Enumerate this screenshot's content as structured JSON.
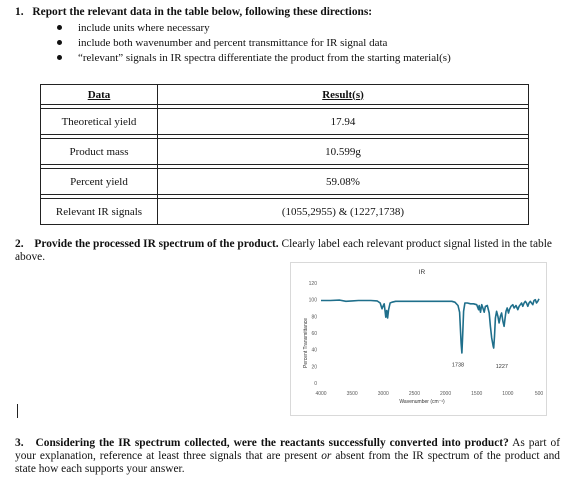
{
  "q1": {
    "number": "1.",
    "heading": "Report the relevant data in the table below, following these directions:",
    "bullets": [
      "include units where necessary",
      "include both wavenumber and percent transmittance for IR signal data",
      "“relevant” signals in IR spectra differentiate the product from the starting material(s)"
    ]
  },
  "table": {
    "headers": [
      "Data",
      "Result(s)"
    ],
    "rows": [
      {
        "label": "Theoretical yield",
        "value": "17.94"
      },
      {
        "label": "Product mass",
        "value": "10.599g"
      },
      {
        "label": "Percent yield",
        "value": "59.08%"
      },
      {
        "label": "Relevant IR signals",
        "value": "(1055,2955) & (1227,1738)"
      }
    ]
  },
  "q2": {
    "number": "2.",
    "bold": "Provide the processed IR spectrum of the product.",
    "rest": " Clearly label each relevant product signal listed in the table above."
  },
  "q3": {
    "number": "3.",
    "bold": "Considering the IR spectrum collected, were the reactants successfully converted into product?",
    "rest_a": " As part of your explanation, reference at least three signals that are present ",
    "or": "or",
    "rest_b": " absent from the IR spectrum of the product and state how each supports your answer."
  },
  "chart_data": {
    "type": "line",
    "title": "IR",
    "xlabel": "Wavenumber (cm⁻¹)",
    "ylabel": "Percent Transmittance",
    "xlim": [
      4000,
      500
    ],
    "ylim": [
      0,
      120
    ],
    "x_ticks": [
      "4000",
      "3500",
      "3000",
      "2500",
      "2000",
      "1500",
      "1000",
      "500"
    ],
    "y_ticks": [
      "0",
      "20",
      "40",
      "60",
      "80",
      "100",
      "120"
    ],
    "annotations": [
      {
        "text": "1738",
        "x": 1738,
        "y": 20
      },
      {
        "text": "1227",
        "x": 1227,
        "y": 18
      }
    ],
    "line_color": "#1f6f8b",
    "series": [
      {
        "points": [
          [
            4000,
            99
          ],
          [
            3850,
            99
          ],
          [
            3700,
            99.5
          ],
          [
            3600,
            98
          ],
          [
            3500,
            98.5
          ],
          [
            3400,
            99
          ],
          [
            3300,
            99
          ],
          [
            3200,
            99
          ],
          [
            3100,
            98.5
          ],
          [
            3050,
            96
          ],
          [
            3020,
            89
          ],
          [
            3000,
            93
          ],
          [
            2985,
            95
          ],
          [
            2960,
            79
          ],
          [
            2945,
            87
          ],
          [
            2930,
            78
          ],
          [
            2915,
            88
          ],
          [
            2890,
            96
          ],
          [
            2860,
            97
          ],
          [
            2800,
            98
          ],
          [
            2600,
            98
          ],
          [
            2400,
            98
          ],
          [
            2200,
            98
          ],
          [
            2000,
            98
          ],
          [
            1900,
            98
          ],
          [
            1850,
            97
          ],
          [
            1800,
            93
          ],
          [
            1775,
            85
          ],
          [
            1750,
            48
          ],
          [
            1738,
            36
          ],
          [
            1725,
            58
          ],
          [
            1710,
            86
          ],
          [
            1690,
            96
          ],
          [
            1650,
            96
          ],
          [
            1600,
            95
          ],
          [
            1550,
            95
          ],
          [
            1500,
            94
          ],
          [
            1470,
            88
          ],
          [
            1460,
            93
          ],
          [
            1440,
            85
          ],
          [
            1420,
            94
          ],
          [
            1400,
            90
          ],
          [
            1380,
            85
          ],
          [
            1360,
            92
          ],
          [
            1330,
            93
          ],
          [
            1300,
            84
          ],
          [
            1280,
            68
          ],
          [
            1260,
            54
          ],
          [
            1245,
            48
          ],
          [
            1235,
            44
          ],
          [
            1227,
            42
          ],
          [
            1215,
            56
          ],
          [
            1200,
            78
          ],
          [
            1180,
            86
          ],
          [
            1160,
            80
          ],
          [
            1140,
            72
          ],
          [
            1120,
            80
          ],
          [
            1100,
            84
          ],
          [
            1080,
            74
          ],
          [
            1060,
            68
          ],
          [
            1045,
            78
          ],
          [
            1030,
            86
          ],
          [
            1010,
            90
          ],
          [
            990,
            84
          ],
          [
            975,
            88
          ],
          [
            950,
            92
          ],
          [
            920,
            94
          ],
          [
            900,
            90
          ],
          [
            870,
            93
          ],
          [
            840,
            88
          ],
          [
            820,
            92
          ],
          [
            800,
            94
          ],
          [
            780,
            96
          ],
          [
            760,
            92
          ],
          [
            740,
            96
          ],
          [
            720,
            98
          ],
          [
            700,
            96
          ],
          [
            680,
            92
          ],
          [
            660,
            96
          ],
          [
            640,
            98
          ],
          [
            620,
            96
          ],
          [
            600,
            94
          ],
          [
            580,
            99
          ],
          [
            560,
            100
          ],
          [
            540,
            96
          ],
          [
            520,
            98
          ],
          [
            500,
            101
          ]
        ]
      }
    ]
  }
}
